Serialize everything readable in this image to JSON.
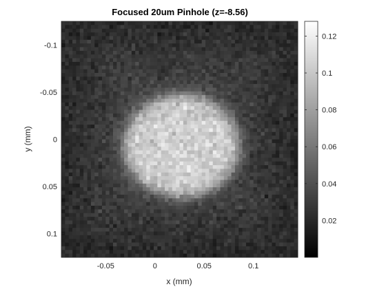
{
  "chart_data": {
    "type": "heatmap",
    "title": "Focused 20um Pinhole (z=-8.56)",
    "xlabel": "x (mm)",
    "ylabel": "y (mm)",
    "xlim": [
      -0.095,
      0.145
    ],
    "ylim": [
      -0.125,
      0.125
    ],
    "y_reversed": true,
    "colormap": "gray",
    "clim": [
      0,
      0.128
    ],
    "x_ticks": [
      -0.05,
      0,
      0.05,
      0.1
    ],
    "x_tick_labels": [
      "-0.05",
      "0",
      "0.05",
      "0.1"
    ],
    "y_ticks": [
      -0.1,
      -0.05,
      0,
      0.05,
      0.1
    ],
    "y_tick_labels": [
      "-0.1",
      "-0.05",
      "0",
      "0.05",
      "0.1"
    ],
    "colorbar_ticks": [
      0.02,
      0.04,
      0.06,
      0.08,
      0.1,
      0.12
    ],
    "colorbar_tick_labels": [
      "0.02",
      "0.04",
      "0.06",
      "0.08",
      "0.1",
      "0.12"
    ],
    "grid": false,
    "spot": {
      "center_x": 0.027,
      "center_y": 0.007,
      "radius_x": 0.058,
      "radius_y": 0.054,
      "peak_value": 0.105
    },
    "background_value": 0.032
  }
}
